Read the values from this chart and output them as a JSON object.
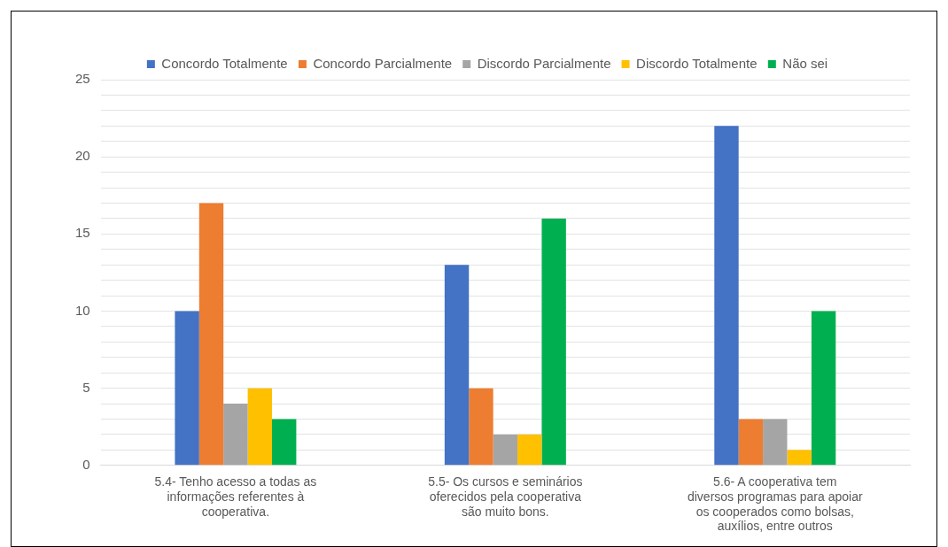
{
  "chart_data": {
    "type": "bar",
    "categories": [
      "5.4- Tenho acesso a todas as informações referentes à cooperativa.",
      "5.5- Os cursos e seminários oferecidos pela cooperativa são muito bons.",
      "5.6- A cooperativa tem diversos programas para apoiar os cooperados como bolsas, auxílios, entre outros"
    ],
    "series": [
      {
        "name": "Concordo Totalmente",
        "color": "#4472c4",
        "values": [
          10,
          13,
          22
        ]
      },
      {
        "name": "Concordo Parcialmente",
        "color": "#ed7d31",
        "values": [
          17,
          5,
          3
        ]
      },
      {
        "name": "Discordo Parcialmente",
        "color": "#a5a5a5",
        "values": [
          4,
          2,
          3
        ]
      },
      {
        "name": "Discordo Totalmente",
        "color": "#ffc000",
        "values": [
          5,
          2,
          1
        ]
      },
      {
        "name": "Não sei",
        "color": "#00b050",
        "values": [
          3,
          16,
          10
        ]
      }
    ],
    "ylim": [
      0,
      25
    ],
    "yticks": [
      0,
      {
        "value": 1,
        "label": null
      },
      {
        "value": 2,
        "label": null
      },
      {
        "value": 3,
        "label": null
      },
      {
        "value": 4,
        "label": null
      },
      5,
      {
        "value": 6,
        "label": null
      },
      {
        "value": 7,
        "label": null
      },
      {
        "value": 8,
        "label": null
      },
      {
        "value": 9,
        "label": null
      },
      10,
      {
        "value": 11,
        "label": null
      },
      {
        "value": 12,
        "label": null
      },
      {
        "value": 13,
        "label": null
      },
      {
        "value": 14,
        "label": null
      },
      15,
      {
        "value": 16,
        "label": null
      },
      {
        "value": 17,
        "label": null
      },
      {
        "value": 18,
        "label": null
      },
      {
        "value": 19,
        "label": null
      },
      20,
      {
        "value": 21,
        "label": null
      },
      {
        "value": 22,
        "label": null
      },
      {
        "value": 23,
        "label": null
      },
      {
        "value": 24,
        "label": null
      },
      25
    ],
    "grid": true,
    "legend": "top"
  }
}
